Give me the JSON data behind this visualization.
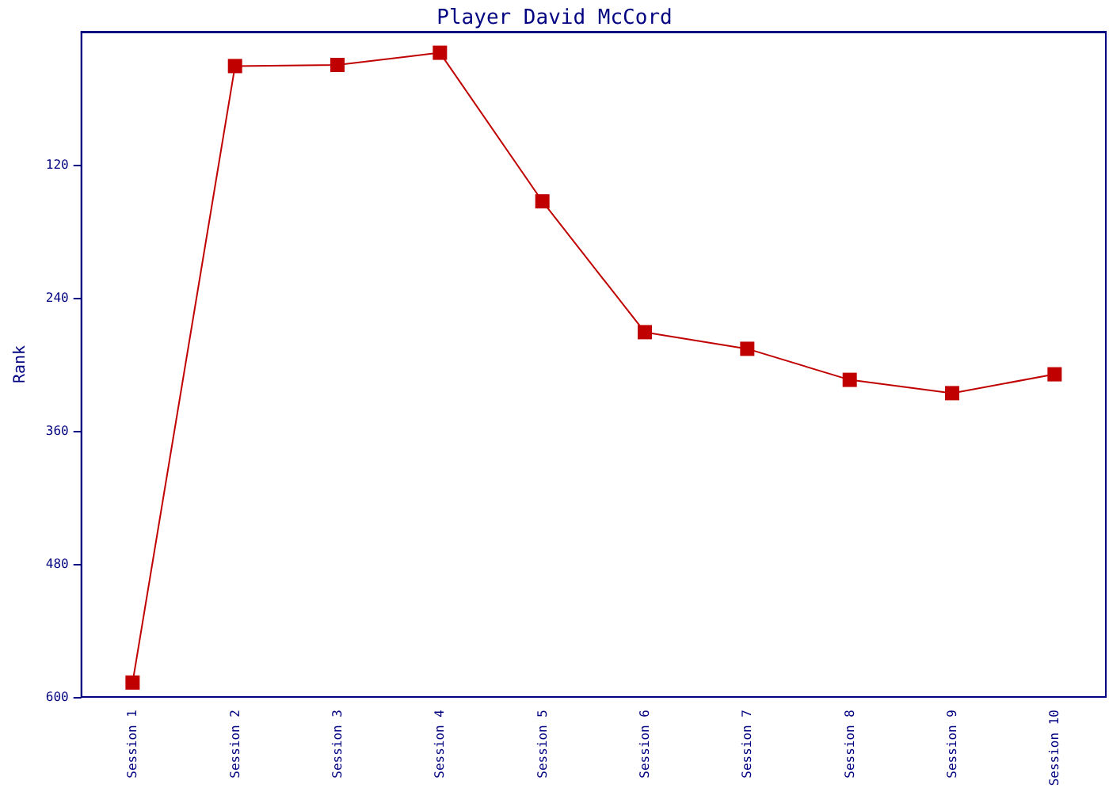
{
  "chart_data": {
    "type": "line",
    "title": "Player David McCord",
    "ylabel": "Rank",
    "categories": [
      "Session 1",
      "Session 2",
      "Session 3",
      "Session 4",
      "Session 5",
      "Session 6",
      "Session 7",
      "Session 8",
      "Session 9",
      "Session 10"
    ],
    "series": [
      {
        "color": "#c00000",
        "values": [
          587,
          31,
          30,
          19,
          153,
          271,
          286,
          314,
          326,
          309
        ]
      }
    ],
    "ylim": [
      600,
      0
    ],
    "yticks": [
      120,
      240,
      360,
      480,
      600
    ],
    "grid": false,
    "marker": "square",
    "line_style": "solid"
  }
}
